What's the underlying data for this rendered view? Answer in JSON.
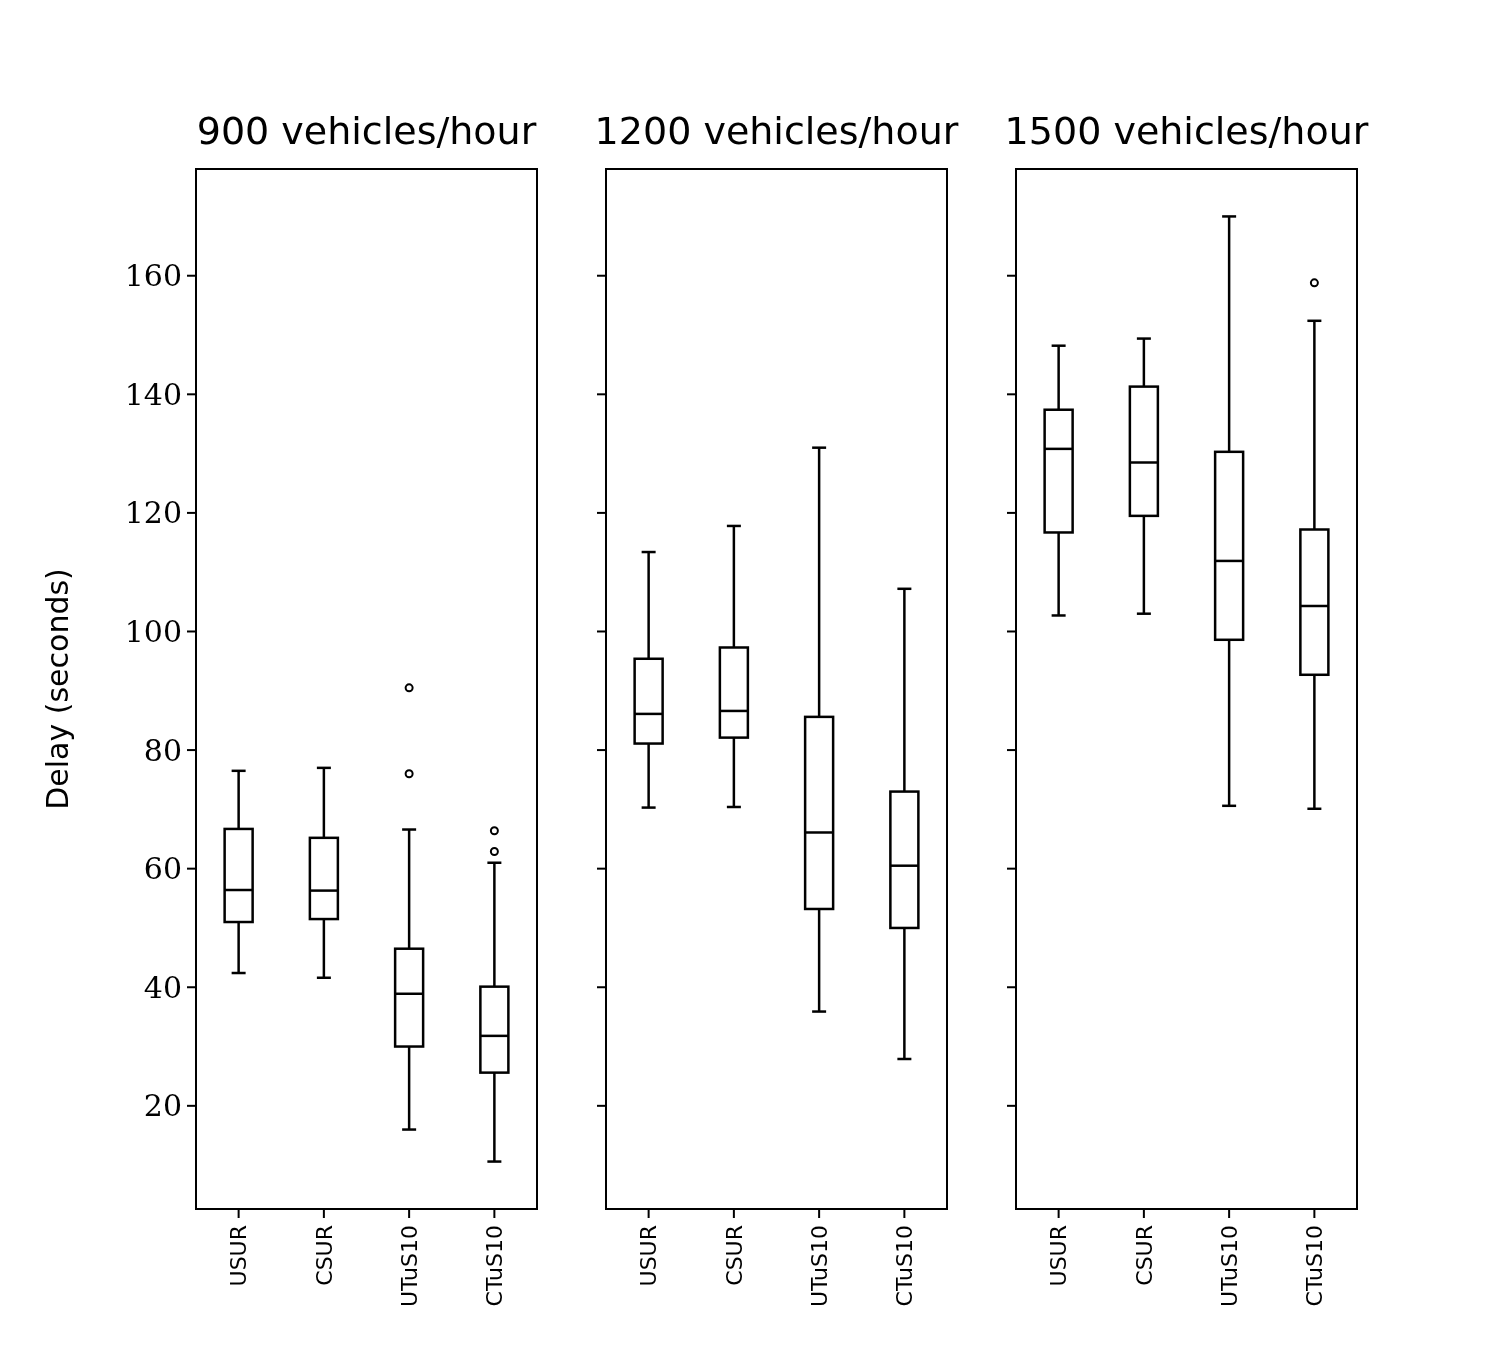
{
  "chart_data": [
    {
      "type": "box",
      "title": "900 vehicles/hour",
      "ylabel": "Delay (seconds)",
      "categories": [
        "USUR",
        "CSUR",
        "UTuS10",
        "CTuS10"
      ],
      "ylim": [
        2.6,
        178
      ],
      "yticks": [
        20,
        40,
        60,
        80,
        100,
        120,
        140,
        160
      ],
      "color": "#000000",
      "boxes": [
        {
          "low": 42.4,
          "q1": 51.0,
          "median": 56.4,
          "q3": 66.7,
          "high": 76.5
        },
        {
          "low": 41.6,
          "q1": 51.5,
          "median": 56.3,
          "q3": 65.2,
          "high": 77.0
        },
        {
          "low": 16.0,
          "q1": 30.0,
          "median": 38.9,
          "q3": 46.5,
          "high": 66.6,
          "outliers": [
            76.0,
            90.5
          ]
        },
        {
          "low": 10.6,
          "q1": 25.6,
          "median": 31.8,
          "q3": 40.1,
          "high": 61.0,
          "outliers": [
            62.9,
            66.4
          ]
        }
      ]
    },
    {
      "type": "box",
      "title": "1200 vehicles/hour",
      "categories": [
        "USUR",
        "CSUR",
        "UTuS10",
        "CTuS10"
      ],
      "ylim": [
        2.6,
        178
      ],
      "yticks": [
        20,
        40,
        60,
        80,
        100,
        120,
        140,
        160
      ],
      "tick_labels": "x",
      "color": "#000000",
      "boxes": [
        {
          "low": 70.3,
          "q1": 81.1,
          "median": 86.1,
          "q3": 95.4,
          "high": 113.4
        },
        {
          "low": 70.4,
          "q1": 82.1,
          "median": 86.6,
          "q3": 97.3,
          "high": 117.8
        },
        {
          "low": 35.9,
          "q1": 53.2,
          "median": 66.1,
          "q3": 85.6,
          "high": 131.0
        },
        {
          "low": 27.9,
          "q1": 50.0,
          "median": 60.5,
          "q3": 73.0,
          "high": 107.2
        }
      ]
    },
    {
      "type": "box",
      "title": "1500 vehicles/hour",
      "categories": [
        "USUR",
        "CSUR",
        "UTuS10",
        "CTuS10"
      ],
      "ylim": [
        2.6,
        178
      ],
      "yticks": [
        20,
        40,
        60,
        80,
        100,
        120,
        140,
        160
      ],
      "tick_labels": "x",
      "color": "#000000",
      "boxes": [
        {
          "low": 102.7,
          "q1": 116.7,
          "median": 130.8,
          "q3": 137.4,
          "high": 148.2
        },
        {
          "low": 103.0,
          "q1": 119.5,
          "median": 128.5,
          "q3": 141.3,
          "high": 149.4
        },
        {
          "low": 70.6,
          "q1": 98.6,
          "median": 111.9,
          "q3": 130.3,
          "high": 170.0
        },
        {
          "low": 70.1,
          "q1": 92.7,
          "median": 104.3,
          "q3": 117.2,
          "high": 152.4,
          "outliers": [
            158.8
          ]
        }
      ]
    }
  ]
}
